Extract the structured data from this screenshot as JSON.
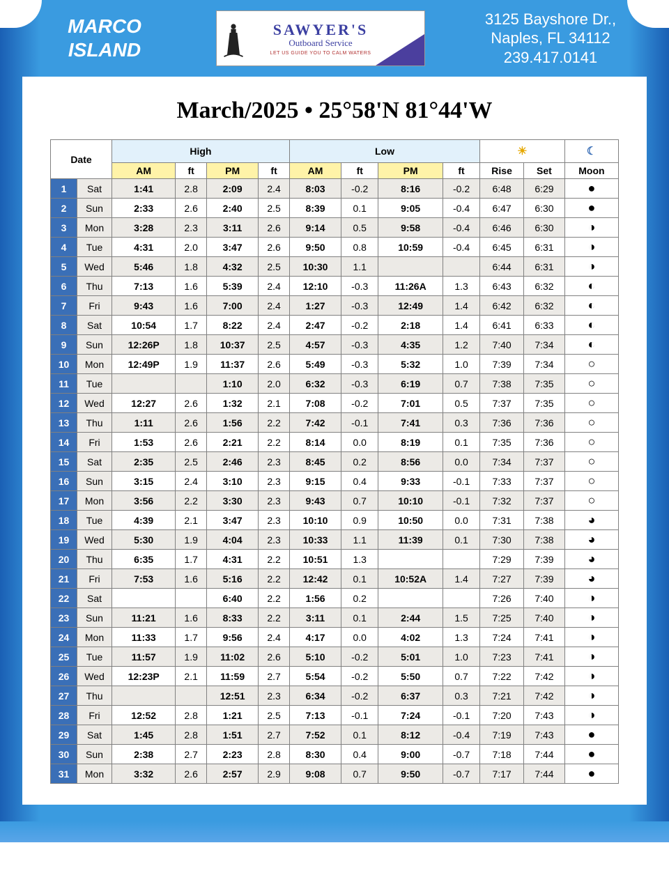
{
  "location_line1": "MARCO",
  "location_line2": "ISLAND",
  "sponsor": {
    "name": "SAWYER'S",
    "sub": "Outboard Service",
    "tag": "LET US GUIDE YOU TO CALM WATERS"
  },
  "address": {
    "line1": "3125 Bayshore Dr.,",
    "line2": "Naples, FL 34112",
    "line3": "239.417.0141"
  },
  "title": "March/2025 • 25°58'N 81°44'W",
  "columns": {
    "date": "Date",
    "high": "High",
    "low": "Low",
    "am": "AM",
    "pm": "PM",
    "ft": "ft",
    "rise": "Rise",
    "set": "Set",
    "moon": "Moon"
  },
  "moon_phases": {
    "new": "●",
    "wax_c": "◐",
    "first": "◐",
    "wax_g": "◔",
    "full": "○",
    "wan_g": "◕",
    "last": "◑",
    "wan_c": "◑"
  },
  "rows": [
    {
      "n": "1",
      "d": "Sat",
      "ha": "1:41",
      "haf": "2.8",
      "hp": "2:09",
      "hpf": "2.4",
      "la": "8:03",
      "laf": "-0.2",
      "lp": "8:16",
      "lpf": "-0.2",
      "r": "6:48",
      "s": "6:29",
      "m": "new"
    },
    {
      "n": "2",
      "d": "Sun",
      "ha": "2:33",
      "haf": "2.6",
      "hp": "2:40",
      "hpf": "2.5",
      "la": "8:39",
      "laf": "0.1",
      "lp": "9:05",
      "lpf": "-0.4",
      "r": "6:47",
      "s": "6:30",
      "m": "new"
    },
    {
      "n": "3",
      "d": "Mon",
      "ha": "3:28",
      "haf": "2.3",
      "hp": "3:11",
      "hpf": "2.6",
      "la": "9:14",
      "laf": "0.5",
      "lp": "9:58",
      "lpf": "-0.4",
      "r": "6:46",
      "s": "6:30",
      "m": "wan_c"
    },
    {
      "n": "4",
      "d": "Tue",
      "ha": "4:31",
      "haf": "2.0",
      "hp": "3:47",
      "hpf": "2.6",
      "la": "9:50",
      "laf": "0.8",
      "lp": "10:59",
      "lpf": "-0.4",
      "r": "6:45",
      "s": "6:31",
      "m": "wan_c"
    },
    {
      "n": "5",
      "d": "Wed",
      "ha": "5:46",
      "haf": "1.8",
      "hp": "4:32",
      "hpf": "2.5",
      "la": "10:30",
      "laf": "1.1",
      "lp": "",
      "lpf": "",
      "r": "6:44",
      "s": "6:31",
      "m": "wan_c"
    },
    {
      "n": "6",
      "d": "Thu",
      "ha": "7:13",
      "haf": "1.6",
      "hp": "5:39",
      "hpf": "2.4",
      "la": "12:10",
      "laf": "-0.3",
      "lp": "11:26A",
      "lpf": "1.3",
      "r": "6:43",
      "s": "6:32",
      "m": "first"
    },
    {
      "n": "7",
      "d": "Fri",
      "ha": "9:43",
      "haf": "1.6",
      "hp": "7:00",
      "hpf": "2.4",
      "la": "1:27",
      "laf": "-0.3",
      "lp": "12:49",
      "lpf": "1.4",
      "r": "6:42",
      "s": "6:32",
      "m": "first"
    },
    {
      "n": "8",
      "d": "Sat",
      "ha": "10:54",
      "haf": "1.7",
      "hp": "8:22",
      "hpf": "2.4",
      "la": "2:47",
      "laf": "-0.2",
      "lp": "2:18",
      "lpf": "1.4",
      "r": "6:41",
      "s": "6:33",
      "m": "first"
    },
    {
      "n": "9",
      "d": "Sun",
      "ha": "12:26P",
      "haf": "1.8",
      "hp": "10:37",
      "hpf": "2.5",
      "la": "4:57",
      "laf": "-0.3",
      "lp": "4:35",
      "lpf": "1.2",
      "r": "7:40",
      "s": "7:34",
      "m": "first"
    },
    {
      "n": "10",
      "d": "Mon",
      "ha": "12:49P",
      "haf": "1.9",
      "hp": "11:37",
      "hpf": "2.6",
      "la": "5:49",
      "laf": "-0.3",
      "lp": "5:32",
      "lpf": "1.0",
      "r": "7:39",
      "s": "7:34",
      "m": "full"
    },
    {
      "n": "11",
      "d": "Tue",
      "ha": "",
      "haf": "",
      "hp": "1:10",
      "hpf": "2.0",
      "la": "6:32",
      "laf": "-0.3",
      "lp": "6:19",
      "lpf": "0.7",
      "r": "7:38",
      "s": "7:35",
      "m": "full"
    },
    {
      "n": "12",
      "d": "Wed",
      "ha": "12:27",
      "haf": "2.6",
      "hp": "1:32",
      "hpf": "2.1",
      "la": "7:08",
      "laf": "-0.2",
      "lp": "7:01",
      "lpf": "0.5",
      "r": "7:37",
      "s": "7:35",
      "m": "full"
    },
    {
      "n": "13",
      "d": "Thu",
      "ha": "1:11",
      "haf": "2.6",
      "hp": "1:56",
      "hpf": "2.2",
      "la": "7:42",
      "laf": "-0.1",
      "lp": "7:41",
      "lpf": "0.3",
      "r": "7:36",
      "s": "7:36",
      "m": "full"
    },
    {
      "n": "14",
      "d": "Fri",
      "ha": "1:53",
      "haf": "2.6",
      "hp": "2:21",
      "hpf": "2.2",
      "la": "8:14",
      "laf": "0.0",
      "lp": "8:19",
      "lpf": "0.1",
      "r": "7:35",
      "s": "7:36",
      "m": "full"
    },
    {
      "n": "15",
      "d": "Sat",
      "ha": "2:35",
      "haf": "2.5",
      "hp": "2:46",
      "hpf": "2.3",
      "la": "8:45",
      "laf": "0.2",
      "lp": "8:56",
      "lpf": "0.0",
      "r": "7:34",
      "s": "7:37",
      "m": "full"
    },
    {
      "n": "16",
      "d": "Sun",
      "ha": "3:15",
      "haf": "2.4",
      "hp": "3:10",
      "hpf": "2.3",
      "la": "9:15",
      "laf": "0.4",
      "lp": "9:33",
      "lpf": "-0.1",
      "r": "7:33",
      "s": "7:37",
      "m": "full"
    },
    {
      "n": "17",
      "d": "Mon",
      "ha": "3:56",
      "haf": "2.2",
      "hp": "3:30",
      "hpf": "2.3",
      "la": "9:43",
      "laf": "0.7",
      "lp": "10:10",
      "lpf": "-0.1",
      "r": "7:32",
      "s": "7:37",
      "m": "full"
    },
    {
      "n": "18",
      "d": "Tue",
      "ha": "4:39",
      "haf": "2.1",
      "hp": "3:47",
      "hpf": "2.3",
      "la": "10:10",
      "laf": "0.9",
      "lp": "10:50",
      "lpf": "0.0",
      "r": "7:31",
      "s": "7:38",
      "m": "wan_g"
    },
    {
      "n": "19",
      "d": "Wed",
      "ha": "5:30",
      "haf": "1.9",
      "hp": "4:04",
      "hpf": "2.3",
      "la": "10:33",
      "laf": "1.1",
      "lp": "11:39",
      "lpf": "0.1",
      "r": "7:30",
      "s": "7:38",
      "m": "wan_g"
    },
    {
      "n": "20",
      "d": "Thu",
      "ha": "6:35",
      "haf": "1.7",
      "hp": "4:31",
      "hpf": "2.2",
      "la": "10:51",
      "laf": "1.3",
      "lp": "",
      "lpf": "",
      "r": "7:29",
      "s": "7:39",
      "m": "wan_g"
    },
    {
      "n": "21",
      "d": "Fri",
      "ha": "7:53",
      "haf": "1.6",
      "hp": "5:16",
      "hpf": "2.2",
      "la": "12:42",
      "laf": "0.1",
      "lp": "10:52A",
      "lpf": "1.4",
      "r": "7:27",
      "s": "7:39",
      "m": "wan_g"
    },
    {
      "n": "22",
      "d": "Sat",
      "ha": "",
      "haf": "",
      "hp": "6:40",
      "hpf": "2.2",
      "la": "1:56",
      "laf": "0.2",
      "lp": "",
      "lpf": "",
      "r": "7:26",
      "s": "7:40",
      "m": "last"
    },
    {
      "n": "23",
      "d": "Sun",
      "ha": "11:21",
      "haf": "1.6",
      "hp": "8:33",
      "hpf": "2.2",
      "la": "3:11",
      "laf": "0.1",
      "lp": "2:44",
      "lpf": "1.5",
      "r": "7:25",
      "s": "7:40",
      "m": "last"
    },
    {
      "n": "24",
      "d": "Mon",
      "ha": "11:33",
      "haf": "1.7",
      "hp": "9:56",
      "hpf": "2.4",
      "la": "4:17",
      "laf": "0.0",
      "lp": "4:02",
      "lpf": "1.3",
      "r": "7:24",
      "s": "7:41",
      "m": "last"
    },
    {
      "n": "25",
      "d": "Tue",
      "ha": "11:57",
      "haf": "1.9",
      "hp": "11:02",
      "hpf": "2.6",
      "la": "5:10",
      "laf": "-0.2",
      "lp": "5:01",
      "lpf": "1.0",
      "r": "7:23",
      "s": "7:41",
      "m": "last"
    },
    {
      "n": "26",
      "d": "Wed",
      "ha": "12:23P",
      "haf": "2.1",
      "hp": "11:59",
      "hpf": "2.7",
      "la": "5:54",
      "laf": "-0.2",
      "lp": "5:50",
      "lpf": "0.7",
      "r": "7:22",
      "s": "7:42",
      "m": "wan_c"
    },
    {
      "n": "27",
      "d": "Thu",
      "ha": "",
      "haf": "",
      "hp": "12:51",
      "hpf": "2.3",
      "la": "6:34",
      "laf": "-0.2",
      "lp": "6:37",
      "lpf": "0.3",
      "r": "7:21",
      "s": "7:42",
      "m": "wan_c"
    },
    {
      "n": "28",
      "d": "Fri",
      "ha": "12:52",
      "haf": "2.8",
      "hp": "1:21",
      "hpf": "2.5",
      "la": "7:13",
      "laf": "-0.1",
      "lp": "7:24",
      "lpf": "-0.1",
      "r": "7:20",
      "s": "7:43",
      "m": "wan_c"
    },
    {
      "n": "29",
      "d": "Sat",
      "ha": "1:45",
      "haf": "2.8",
      "hp": "1:51",
      "hpf": "2.7",
      "la": "7:52",
      "laf": "0.1",
      "lp": "8:12",
      "lpf": "-0.4",
      "r": "7:19",
      "s": "7:43",
      "m": "new"
    },
    {
      "n": "30",
      "d": "Sun",
      "ha": "2:38",
      "haf": "2.7",
      "hp": "2:23",
      "hpf": "2.8",
      "la": "8:30",
      "laf": "0.4",
      "lp": "9:00",
      "lpf": "-0.7",
      "r": "7:18",
      "s": "7:44",
      "m": "new"
    },
    {
      "n": "31",
      "d": "Mon",
      "ha": "3:32",
      "haf": "2.6",
      "hp": "2:57",
      "hpf": "2.9",
      "la": "9:08",
      "laf": "0.7",
      "lp": "9:50",
      "lpf": "-0.7",
      "r": "7:17",
      "s": "7:44",
      "m": "new"
    }
  ]
}
